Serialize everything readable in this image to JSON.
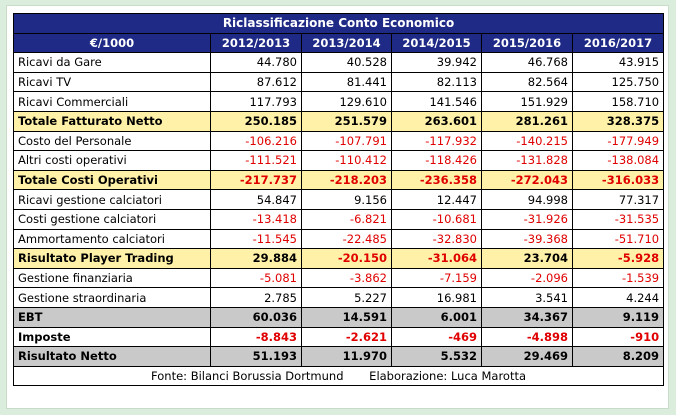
{
  "table": {
    "title": "Riclassificazione Conto Economico",
    "header": [
      "€/1000",
      "2012/2013",
      "2013/2014",
      "2014/2015",
      "2015/2016",
      "2016/2017"
    ],
    "rows": [
      {
        "label": "Ricavi da Gare",
        "style": "normal",
        "values": [
          "44.780",
          "40.528",
          "39.942",
          "46.768",
          "43.915"
        ]
      },
      {
        "label": "Ricavi TV",
        "style": "normal",
        "values": [
          "87.612",
          "81.441",
          "82.113",
          "82.564",
          "125.750"
        ]
      },
      {
        "label": "Ricavi Commerciali",
        "style": "normal",
        "values": [
          "117.793",
          "129.610",
          "141.546",
          "151.929",
          "158.710"
        ]
      },
      {
        "label": "Totale Fatturato Netto",
        "style": "yellow",
        "values": [
          "250.185",
          "251.579",
          "263.601",
          "281.261",
          "328.375"
        ]
      },
      {
        "label": "Costo del Personale",
        "style": "normal",
        "values": [
          "-106.216",
          "-107.791",
          "-117.932",
          "-140.215",
          "-177.949"
        ]
      },
      {
        "label": "Altri costi operativi",
        "style": "normal",
        "values": [
          "-111.521",
          "-110.412",
          "-118.426",
          "-131.828",
          "-138.084"
        ]
      },
      {
        "label": "Totale Costi Operativi",
        "style": "yellow",
        "values": [
          "-217.737",
          "-218.203",
          "-236.358",
          "-272.043",
          "-316.033"
        ]
      },
      {
        "label": "Ricavi gestione calciatori",
        "style": "normal",
        "values": [
          "54.847",
          "9.156",
          "12.447",
          "94.998",
          "77.317"
        ]
      },
      {
        "label": "Costi gestione calciatori",
        "style": "normal",
        "values": [
          "-13.418",
          "-6.821",
          "-10.681",
          "-31.926",
          "-31.535"
        ]
      },
      {
        "label": "Ammortamento calciatori",
        "style": "normal",
        "values": [
          "-11.545",
          "-22.485",
          "-32.830",
          "-39.368",
          "-51.710"
        ]
      },
      {
        "label": "Risultato Player Trading",
        "style": "yellow",
        "values": [
          "29.884",
          "-20.150",
          "-31.064",
          "23.704",
          "-5.928"
        ]
      },
      {
        "label": "Gestione finanziaria",
        "style": "normal",
        "values": [
          "-5.081",
          "-3.862",
          "-7.159",
          "-2.096",
          "-1.539"
        ]
      },
      {
        "label": "Gestione straordinaria",
        "style": "normal",
        "values": [
          "2.785",
          "5.227",
          "16.981",
          "3.541",
          "4.244"
        ]
      },
      {
        "label": "EBT",
        "style": "gray",
        "values": [
          "60.036",
          "14.591",
          "6.001",
          "34.367",
          "9.119"
        ]
      },
      {
        "label": "Imposte",
        "style": "bold",
        "values": [
          "-8.843",
          "-2.621",
          "-469",
          "-4.898",
          "-910"
        ]
      },
      {
        "label": "Risultato Netto",
        "style": "gray",
        "values": [
          "51.193",
          "11.970",
          "5.532",
          "29.469",
          "8.209"
        ]
      }
    ],
    "footer": {
      "source": "Fonte: Bilanci Borussia Dortmund",
      "author": "Elaborazione: Luca Marotta"
    }
  },
  "colors": {
    "header_bg": "#1f2a86",
    "highlight_yellow": "#fff2a8",
    "highlight_gray": "#c9c9c9",
    "negative": "#e00000",
    "page_bg": "#dbeedd"
  }
}
